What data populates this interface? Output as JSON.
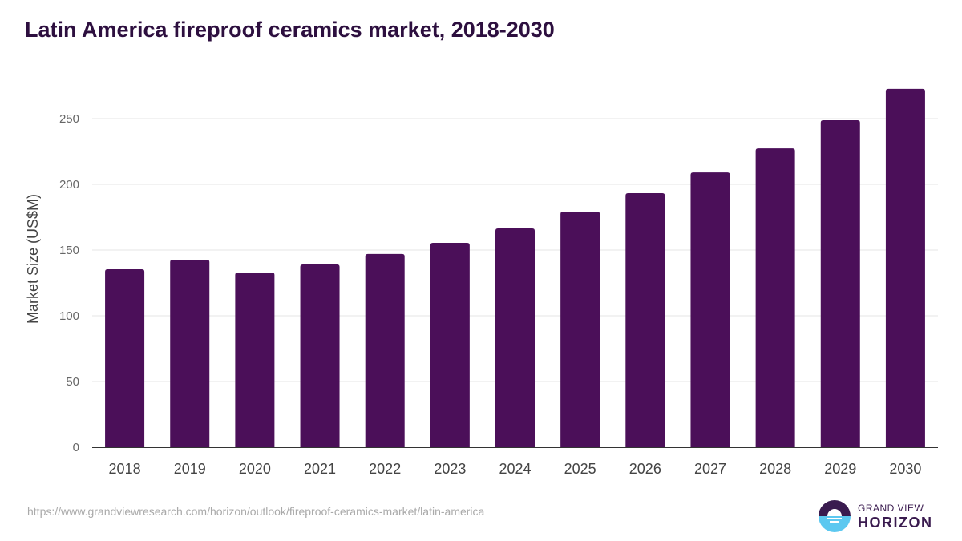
{
  "title": "Latin America fireproof ceramics market, 2018-2030",
  "source_url": "https://www.grandviewresearch.com/horizon/outlook/fireproof-ceramics-market/latin-america",
  "logo": {
    "line1": "GRAND VIEW",
    "line2": "HORIZON"
  },
  "colors": {
    "bar": "#4b0f59",
    "title": "#2d0f3f"
  },
  "chart_data": {
    "type": "bar",
    "title": "Latin America fireproof ceramics market, 2018-2030",
    "xlabel": "",
    "ylabel": "Market Size (US$M)",
    "ylim": [
      0,
      280
    ],
    "yticks": [
      0,
      50,
      100,
      150,
      200,
      250
    ],
    "grid": true,
    "categories": [
      "2018",
      "2019",
      "2020",
      "2021",
      "2022",
      "2023",
      "2024",
      "2025",
      "2026",
      "2027",
      "2028",
      "2029",
      "2030"
    ],
    "values": [
      135.4,
      142.7,
      132.9,
      139.0,
      147.0,
      155.5,
      166.5,
      179.3,
      193.3,
      209.1,
      227.4,
      248.8,
      272.6
    ]
  }
}
